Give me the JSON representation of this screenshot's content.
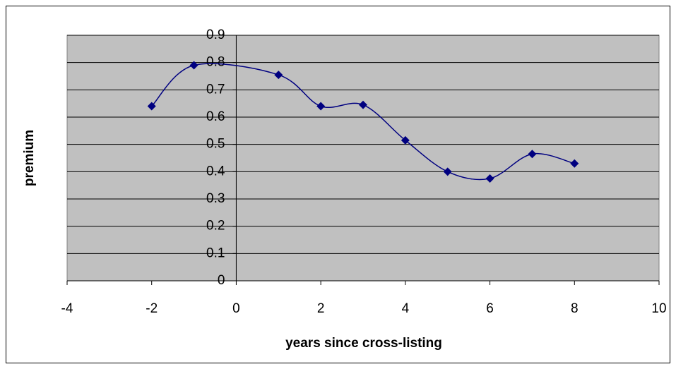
{
  "chart_data": {
    "type": "smooth-scatter",
    "x_label": "years since cross-listing",
    "y_label": "premium",
    "series": [
      {
        "color": "#000080",
        "x": [
          -2,
          -1,
          1,
          2,
          3,
          4,
          5,
          6,
          7,
          8
        ],
        "values": [
          0.64,
          0.79,
          0.755,
          0.64,
          0.645,
          0.515,
          0.4,
          0.375,
          0.465,
          0.43
        ]
      }
    ],
    "xlim": [
      -4,
      10
    ],
    "xticks": [
      -4,
      -2,
      0,
      2,
      4,
      6,
      8,
      10
    ],
    "ylim": [
      0,
      0.9
    ],
    "yticks": [
      0,
      0.1,
      0.2,
      0.3,
      0.4,
      0.5,
      0.6,
      0.7,
      0.8,
      0.9
    ],
    "grid": true,
    "plot_background": "#c0c0c0"
  }
}
